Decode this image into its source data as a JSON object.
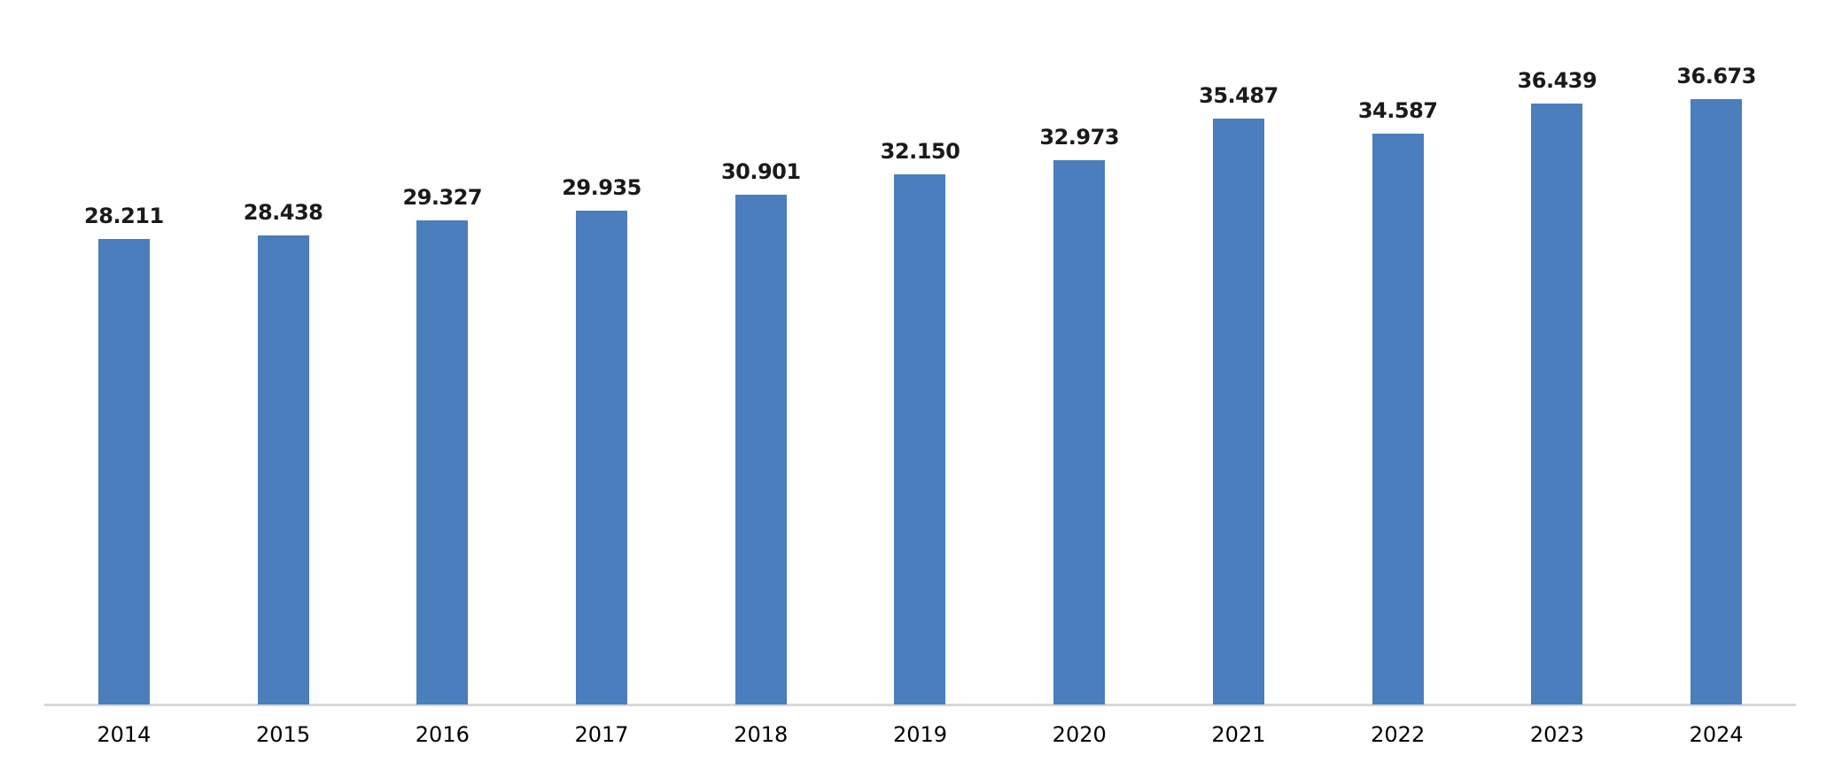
{
  "chart_data": {
    "type": "bar",
    "title": "",
    "xlabel": "",
    "ylabel": "",
    "categories": [
      "2014",
      "2015",
      "2016",
      "2017",
      "2018",
      "2019",
      "2020",
      "2021",
      "2022",
      "2023",
      "2024"
    ],
    "values": [
      28.211,
      28.438,
      29.327,
      29.935,
      30.901,
      32.15,
      32.973,
      35.487,
      34.587,
      36.439,
      36.673
    ],
    "value_labels": [
      "28.211",
      "28.438",
      "29.327",
      "29.935",
      "30.901",
      "32.150",
      "32.973",
      "35.487",
      "34.587",
      "36.439",
      "36.673"
    ],
    "ylim": [
      0,
      42.7
    ],
    "grid": false,
    "legend": false,
    "y_axis_visible": false,
    "colors": {
      "bar": "#4A7EBD",
      "axis_line": "#D8D8D8",
      "value_label": "#1A1A1A",
      "tick_label": "#000000",
      "background": "#FFFFFF"
    }
  }
}
